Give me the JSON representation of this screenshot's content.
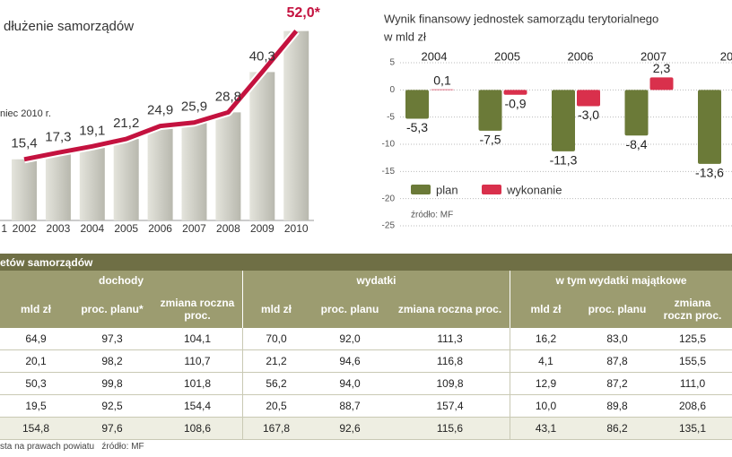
{
  "chart_data": [
    {
      "type": "line",
      "title": "dłużenie samorządów",
      "subtitle": "niec 2010 r.",
      "categories": [
        "1",
        "2002",
        "2003",
        "2004",
        "2005",
        "2006",
        "2007",
        "2008",
        "2009",
        "2010"
      ],
      "values": [
        null,
        15.4,
        17.3,
        19.1,
        21.2,
        24.9,
        25.9,
        28.8,
        40.3,
        52.0
      ],
      "value_labels": [
        null,
        "15,4",
        "17,3",
        "19,1",
        "21,2",
        "24,9",
        "25,9",
        "28,8",
        "40,3",
        "52,0*"
      ],
      "color": "#c4123f",
      "ylim": [
        0,
        56
      ]
    },
    {
      "type": "bar",
      "title": "Wynik finansowy jednostek samorządu terytorialnego",
      "subtitle": "w mld zł",
      "categories": [
        "2004",
        "2005",
        "2006",
        "2007",
        "20"
      ],
      "series": [
        {
          "name": "plan",
          "color": "#6b7a38",
          "values": [
            -5.3,
            -7.5,
            -11.3,
            -8.4,
            -13.6
          ],
          "value_labels": [
            "-5,3",
            "-7,5",
            "-11,3",
            "-8,4",
            "-13,6"
          ]
        },
        {
          "name": "wykonanie",
          "color": "#d9304c",
          "values": [
            0.1,
            -0.9,
            -3.0,
            2.3,
            null
          ],
          "value_labels": [
            "0,1",
            "-0,9",
            "-3,0",
            "2,3",
            null
          ]
        }
      ],
      "ylim": [
        -25,
        5
      ],
      "yticks": [
        5,
        0,
        -5,
        -10,
        -15,
        -20,
        -25
      ],
      "grid": true,
      "source": "źródło: MF"
    }
  ],
  "table": {
    "title": "etów samorządów",
    "groups": [
      "dochody",
      "wydatki",
      "w tym wydatki majątkowe"
    ],
    "columns": [
      "mld zł",
      "proc. planu*",
      "zmiana roczna proc.",
      "mld zł",
      "proc. planu",
      "zmiana roczna proc.",
      "mld zł",
      "proc. planu",
      "zmiana roczn proc."
    ],
    "rows": [
      [
        "64,9",
        "97,3",
        "104,1",
        "70,0",
        "92,0",
        "111,3",
        "16,2",
        "83,0",
        "125,5"
      ],
      [
        "20,1",
        "98,2",
        "110,7",
        "21,2",
        "94,6",
        "116,8",
        "4,1",
        "87,8",
        "155,5"
      ],
      [
        "50,3",
        "99,8",
        "101,8",
        "56,2",
        "94,0",
        "109,8",
        "12,9",
        "87,2",
        "111,0"
      ],
      [
        "19,5",
        "92,5",
        "154,4",
        "20,5",
        "88,7",
        "157,4",
        "10,0",
        "89,8",
        "208,6"
      ],
      [
        "154,8",
        "97,6",
        "108,6",
        "167,8",
        "92,6",
        "115,6",
        "43,1",
        "86,2",
        "135,1"
      ]
    ],
    "footnote": "sta na prawach powiatu",
    "source": "źródło: MF"
  }
}
